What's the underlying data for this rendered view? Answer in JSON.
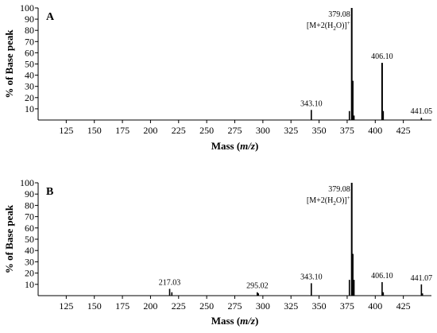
{
  "chart_data": [
    {
      "type": "bar",
      "panel_label": "A",
      "xlabel": "Mass (m/z)",
      "xlabel_plain": "Mass (",
      "xlabel_italic": "m/z",
      "xlabel_close": ")",
      "ylabel": "% of Base peak",
      "xlim": [
        100,
        450
      ],
      "ylim": [
        0,
        100
      ],
      "xticks": [
        125,
        150,
        175,
        200,
        225,
        250,
        275,
        300,
        325,
        350,
        375,
        400,
        425
      ],
      "yticks": [
        10,
        20,
        30,
        40,
        50,
        60,
        70,
        80,
        90,
        100
      ],
      "peaks": [
        {
          "mz": 343.1,
          "intensity": 9
        },
        {
          "mz": 377.0,
          "intensity": 8
        },
        {
          "mz": 379.08,
          "intensity": 100
        },
        {
          "mz": 380.1,
          "intensity": 35
        },
        {
          "mz": 381.1,
          "intensity": 4
        },
        {
          "mz": 406.1,
          "intensity": 51
        },
        {
          "mz": 407.1,
          "intensity": 8
        },
        {
          "mz": 441.05,
          "intensity": 2
        }
      ],
      "annotations": [
        {
          "mz": 343.1,
          "intensity": 9,
          "text": "343.10"
        },
        {
          "mz": 406.1,
          "intensity": 51,
          "text": "406.10"
        },
        {
          "mz": 441.05,
          "intensity": 2,
          "text": "441.05"
        },
        {
          "mz": 379.08,
          "intensity": 100,
          "text": "379.08",
          "ion_label": true
        }
      ],
      "ion_label": {
        "prefix": "[M+2(H",
        "sub": "2",
        "mid": "O)]",
        "sup": "+"
      }
    },
    {
      "type": "bar",
      "panel_label": "B",
      "xlabel": "Mass (m/z)",
      "xlabel_plain": "Mass (",
      "xlabel_italic": "m/z",
      "xlabel_close": ")",
      "ylabel": "% of Base peak",
      "xlim": [
        100,
        450
      ],
      "ylim": [
        0,
        100
      ],
      "xticks": [
        125,
        150,
        175,
        200,
        225,
        250,
        275,
        300,
        325,
        350,
        375,
        400,
        425
      ],
      "yticks": [
        10,
        20,
        30,
        40,
        50,
        60,
        70,
        80,
        90,
        100
      ],
      "peaks": [
        {
          "mz": 217.03,
          "intensity": 6
        },
        {
          "mz": 219.0,
          "intensity": 3
        },
        {
          "mz": 295.02,
          "intensity": 3
        },
        {
          "mz": 296.0,
          "intensity": 2
        },
        {
          "mz": 343.1,
          "intensity": 11
        },
        {
          "mz": 377.0,
          "intensity": 14
        },
        {
          "mz": 379.08,
          "intensity": 100
        },
        {
          "mz": 380.1,
          "intensity": 37
        },
        {
          "mz": 381.1,
          "intensity": 14
        },
        {
          "mz": 406.1,
          "intensity": 12
        },
        {
          "mz": 407.1,
          "intensity": 3
        },
        {
          "mz": 441.07,
          "intensity": 10
        },
        {
          "mz": 442.0,
          "intensity": 2
        }
      ],
      "annotations": [
        {
          "mz": 217.03,
          "intensity": 6,
          "text": "217.03"
        },
        {
          "mz": 295.02,
          "intensity": 3,
          "text": "295.02"
        },
        {
          "mz": 343.1,
          "intensity": 11,
          "text": "343.10"
        },
        {
          "mz": 406.1,
          "intensity": 12,
          "text": "406.10"
        },
        {
          "mz": 441.07,
          "intensity": 10,
          "text": "441.07"
        },
        {
          "mz": 379.08,
          "intensity": 100,
          "text": "379.08",
          "ion_label": true
        }
      ],
      "ion_label": {
        "prefix": "[M+2(H",
        "sub": "2",
        "mid": "O)]",
        "sup": "+"
      }
    }
  ]
}
